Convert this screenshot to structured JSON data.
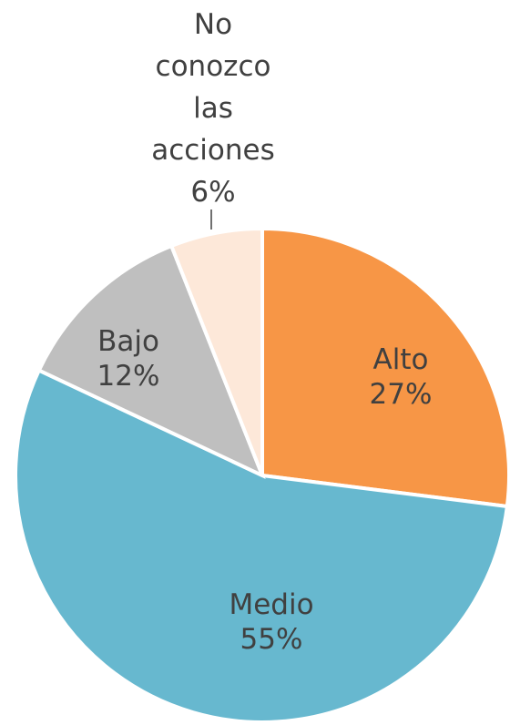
{
  "chart_data": {
    "type": "pie",
    "categories": [
      "Alto",
      "Medio",
      "Bajo",
      "No conozco las acciones"
    ],
    "values": [
      27,
      55,
      12,
      6
    ],
    "value_labels": [
      "27%",
      "55%",
      "12%",
      "6%"
    ],
    "colors": [
      "#f79646",
      "#67b8cf",
      "#bfbfbf",
      "#fde8d9"
    ]
  }
}
